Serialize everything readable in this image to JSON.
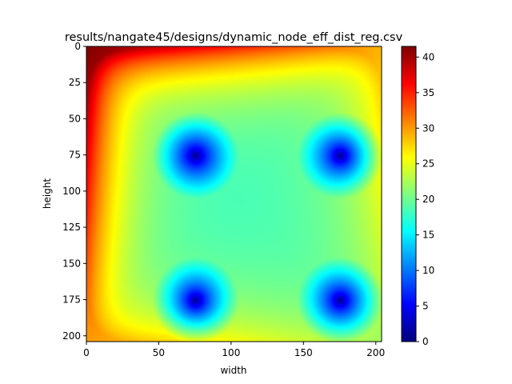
{
  "chart_data": {
    "type": "heatmap",
    "title": "results/nangate45/designs/dynamic_node_eff_dist_reg.csv",
    "xlabel": "width",
    "ylabel": "height",
    "grid_size": [
      204,
      204
    ],
    "xlim": [
      0,
      204
    ],
    "ylim": [
      204,
      0
    ],
    "x_ticks": [
      0,
      50,
      100,
      150,
      200
    ],
    "y_ticks": [
      0,
      25,
      50,
      75,
      100,
      125,
      150,
      175,
      200
    ],
    "colormap": "jet",
    "colorbar": {
      "min": 0,
      "max": 41.5,
      "ticks": [
        0,
        5,
        10,
        15,
        20,
        25,
        30,
        35,
        40
      ],
      "colors": [
        "#00007f",
        "#0000ff",
        "#007fff",
        "#00ffff",
        "#7fff7f",
        "#ffff00",
        "#ff7f00",
        "#ff0000",
        "#7f0000"
      ]
    },
    "sources": [
      {
        "x": 75,
        "y": 75,
        "min_value": 0
      },
      {
        "x": 175,
        "y": 75,
        "min_value": 0
      },
      {
        "x": 75,
        "y": 175,
        "min_value": 0
      },
      {
        "x": 175,
        "y": 175,
        "min_value": 0
      }
    ],
    "plateau_value": 18,
    "border_values": {
      "top_left": 41.5,
      "top_right": 29,
      "bottom_left": 30,
      "bottom_right": 22
    }
  }
}
